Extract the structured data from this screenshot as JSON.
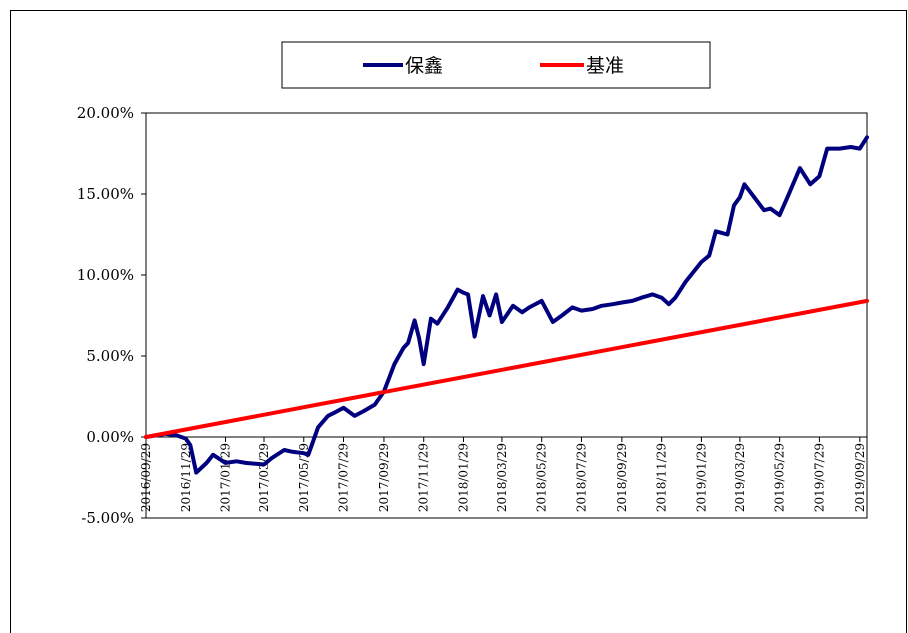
{
  "chart_data": {
    "type": "line",
    "title": "",
    "xlabel": "",
    "ylabel": "",
    "ylim": [
      -0.05,
      0.2
    ],
    "y_ticks": [
      -0.05,
      0.0,
      0.05,
      0.1,
      0.15,
      0.2
    ],
    "y_tick_labels": [
      "-5.00%",
      "0.00%",
      "5.00%",
      "10.00%",
      "15.00%",
      "20.00%"
    ],
    "x_tick_labels": [
      "2016/09/29",
      "2016/11/29",
      "2017/01/29",
      "2017/03/29",
      "2017/05/29",
      "2017/07/29",
      "2017/09/29",
      "2017/11/29",
      "2018/01/29",
      "2018/03/29",
      "2018/05/29",
      "2018/07/29",
      "2018/09/29",
      "2018/11/29",
      "2019/01/29",
      "2019/03/29",
      "2019/05/29",
      "2019/07/29",
      "2019/09/29"
    ],
    "x_range": [
      "2016/09/29",
      "2019/10/10"
    ],
    "legend_position": "top-center",
    "grid": false,
    "series": [
      {
        "name": "保鑫",
        "color": "#00007f",
        "x": [
          "2016/09/29",
          "2016/10/29",
          "2016/11/15",
          "2016/11/29",
          "2016/12/06",
          "2016/12/15",
          "2016/12/31",
          "2017/01/10",
          "2017/01/29",
          "2017/02/15",
          "2017/03/01",
          "2017/03/29",
          "2017/04/10",
          "2017/04/29",
          "2017/05/10",
          "2017/05/29",
          "2017/06/05",
          "2017/06/20",
          "2017/07/05",
          "2017/07/15",
          "2017/07/29",
          "2017/08/15",
          "2017/08/29",
          "2017/09/15",
          "2017/09/29",
          "2017/10/15",
          "2017/10/29",
          "2017/11/05",
          "2017/11/15",
          "2017/11/22",
          "2017/11/29",
          "2017/12/10",
          "2017/12/20",
          "2018/01/05",
          "2018/01/20",
          "2018/01/29",
          "2018/02/05",
          "2018/02/15",
          "2018/02/28",
          "2018/03/10",
          "2018/03/20",
          "2018/03/29",
          "2018/04/15",
          "2018/04/29",
          "2018/05/10",
          "2018/05/29",
          "2018/06/15",
          "2018/06/29",
          "2018/07/15",
          "2018/07/29",
          "2018/08/15",
          "2018/08/29",
          "2018/09/15",
          "2018/09/29",
          "2018/10/15",
          "2018/10/29",
          "2018/11/15",
          "2018/11/29",
          "2018/12/10",
          "2018/12/20",
          "2019/01/05",
          "2019/01/15",
          "2019/01/29",
          "2019/02/10",
          "2019/02/20",
          "2019/03/10",
          "2019/03/20",
          "2019/03/29",
          "2019/04/05",
          "2019/04/20",
          "2019/05/05",
          "2019/05/15",
          "2019/05/29",
          "2019/06/10",
          "2019/06/29",
          "2019/07/15",
          "2019/07/29",
          "2019/08/10",
          "2019/08/29",
          "2019/09/15",
          "2019/09/29",
          "2019/10/10"
        ],
        "values": [
          0.0,
          0.002,
          0.001,
          -0.001,
          -0.005,
          -0.022,
          -0.016,
          -0.011,
          -0.016,
          -0.015,
          -0.016,
          -0.017,
          -0.013,
          -0.008,
          -0.009,
          -0.01,
          -0.011,
          0.006,
          0.013,
          0.015,
          0.018,
          0.013,
          0.016,
          0.02,
          0.028,
          0.045,
          0.055,
          0.058,
          0.072,
          0.061,
          0.045,
          0.073,
          0.07,
          0.08,
          0.091,
          0.089,
          0.088,
          0.062,
          0.087,
          0.075,
          0.088,
          0.071,
          0.081,
          0.077,
          0.08,
          0.084,
          0.071,
          0.075,
          0.08,
          0.078,
          0.079,
          0.081,
          0.082,
          0.083,
          0.084,
          0.086,
          0.088,
          0.086,
          0.082,
          0.086,
          0.096,
          0.101,
          0.108,
          0.112,
          0.127,
          0.125,
          0.143,
          0.148,
          0.156,
          0.148,
          0.14,
          0.141,
          0.137,
          0.148,
          0.166,
          0.156,
          0.161,
          0.178,
          0.178,
          0.179,
          0.178,
          0.185
        ]
      },
      {
        "name": "基准",
        "color": "#ff0000",
        "x": [
          "2016/09/29",
          "2019/10/10"
        ],
        "values": [
          0.0,
          0.084
        ]
      }
    ]
  }
}
